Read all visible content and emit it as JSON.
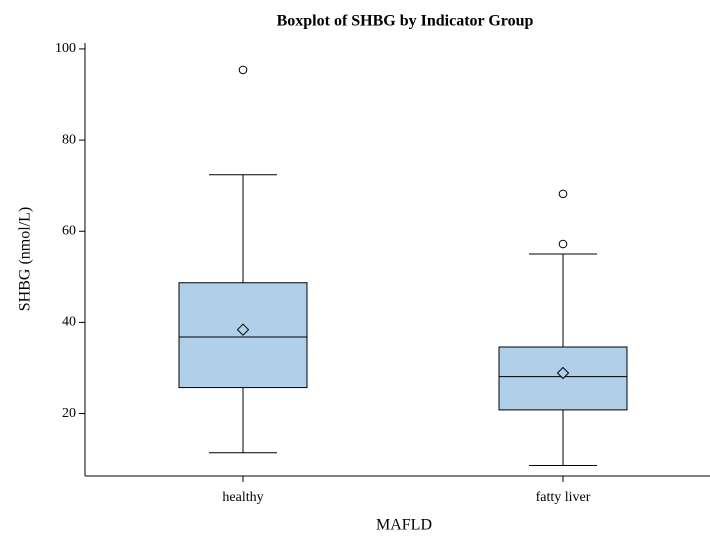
{
  "chart_data": {
    "type": "box",
    "title": "Boxplot of SHBG by Indicator Group",
    "x_label": "MAFLD",
    "y_label": "SHBG (nmol/L)",
    "categories": [
      "healthy",
      "fatty liver"
    ],
    "color": "#b0cfe8",
    "boxes": [
      {
        "min": 11.4,
        "q1": 25.7,
        "median": 36.8,
        "q3": 48.7,
        "max": 72.4,
        "mean": 38.4,
        "outliers": [
          95.4
        ]
      },
      {
        "min": 8.6,
        "q1": 20.8,
        "median": 28.1,
        "q3": 34.6,
        "max": 55.0,
        "mean": 28.9,
        "outliers": [
          68.2,
          57.2
        ]
      }
    ],
    "ylim": [
      6.3,
      101.3
    ],
    "yticks": [
      20,
      40,
      60,
      80,
      100
    ]
  }
}
